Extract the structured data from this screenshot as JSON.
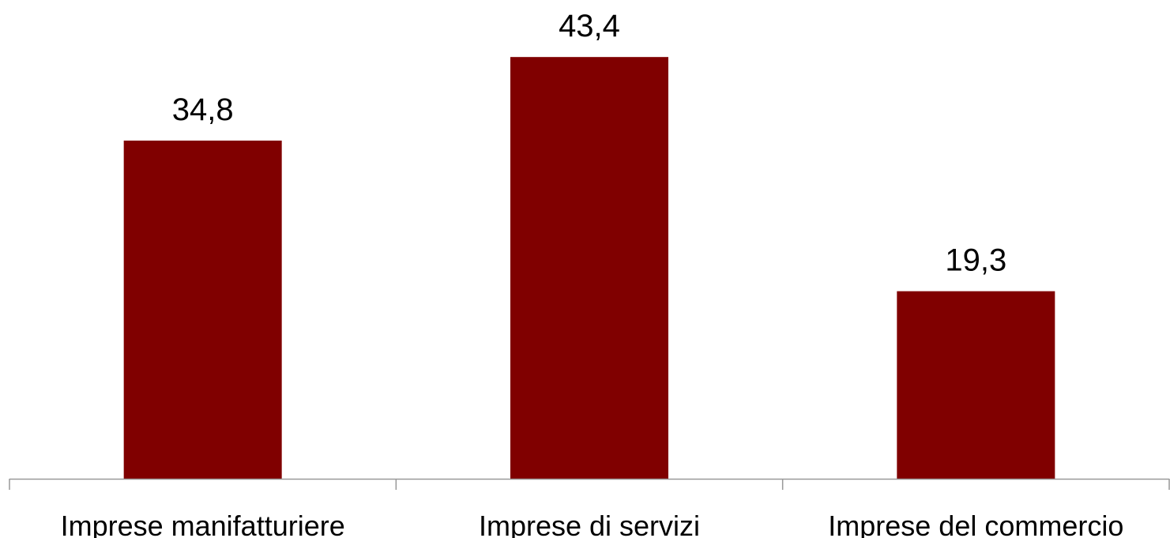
{
  "chart_data": {
    "type": "bar",
    "categories": [
      "Imprese manifatturiere",
      "Imprese di servizi",
      "Imprese del commercio"
    ],
    "values": [
      34.8,
      43.4,
      19.3
    ],
    "value_labels": [
      "34,8",
      "43,4",
      "19,3"
    ],
    "title": "",
    "xlabel": "",
    "ylabel": "",
    "ylim": [
      0,
      50
    ],
    "grid": false,
    "legend": "none",
    "bar_color": "#800000",
    "axis_color": "#999999"
  }
}
